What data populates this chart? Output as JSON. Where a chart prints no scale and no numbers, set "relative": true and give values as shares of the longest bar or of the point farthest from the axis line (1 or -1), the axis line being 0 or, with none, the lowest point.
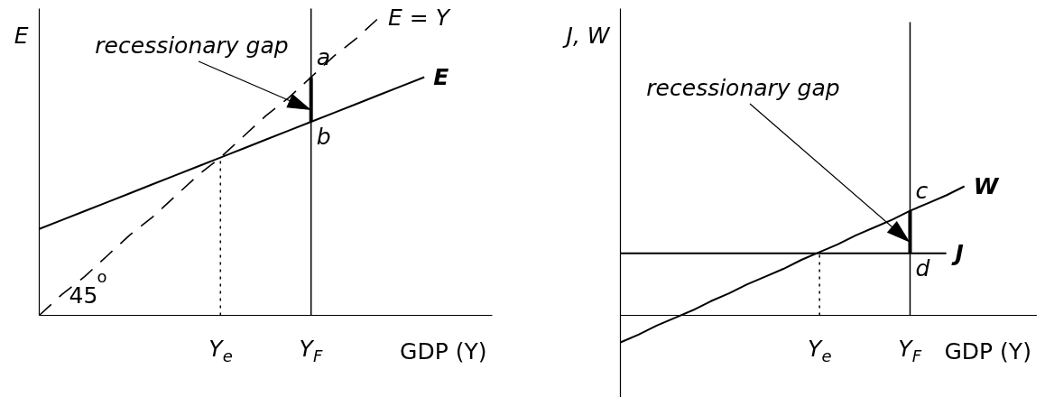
{
  "chart_data": [
    {
      "type": "line",
      "relative": true,
      "xlabel": "GDP (Y)",
      "ylabel": "E",
      "categories": [
        null,
        null,
        null,
        null,
        null,
        null,
        null,
        null,
        "Y$_{e}$",
        null,
        null,
        null,
        "Y$_{F}$",
        null,
        null,
        null,
        null,
        null,
        null,
        null,
        null
      ],
      "series": [
        {
          "name": "E = Y",
          "color": "#000000",
          "line_style": "dashed",
          "values": [
            0,
            0.07,
            0.13,
            0.2,
            0.27,
            0.33,
            0.4,
            0.47,
            0.53,
            0.6,
            0.67,
            0.73,
            0.8,
            0.87,
            0.93,
            1.0,
            null,
            null,
            null,
            null,
            null
          ]
        },
        {
          "name": "E",
          "color": "#000000",
          "line_style": "solid",
          "values": [
            0.29,
            0.32,
            0.35,
            0.38,
            0.41,
            0.44,
            0.47,
            0.5,
            0.53,
            0.56,
            0.59,
            0.62,
            0.65,
            0.68,
            0.71,
            0.74,
            0.77,
            0.8,
            null,
            null,
            null
          ]
        }
      ],
      "ref_lines": [
        {
          "axis": "x",
          "value": "Y$_{e}$",
          "line_style": "dotted",
          "color": "#000000"
        },
        {
          "axis": "x",
          "value": "Y$_{F}$",
          "line_style": "solid",
          "color": "#000000"
        }
      ],
      "annotations": [
        "45$^{o}$",
        {
          "text": "recessionary gap",
          "x": "Y$_{F}$",
          "y": 0.69
        },
        {
          "text": "a",
          "x": "Y$_{F}$",
          "y": 0.8
        },
        {
          "text": "b",
          "x": "Y$_{F}$",
          "y": 0.65
        }
      ]
    },
    {
      "type": "line",
      "relative": true,
      "xlabel": "GDP (Y)",
      "ylabel": "J, W",
      "categories": [
        null,
        null,
        null,
        null,
        null,
        null,
        null,
        null,
        null,
        null,
        null,
        "Y$_{e}$",
        null,
        null,
        null,
        null,
        "Y$_{F}$",
        null,
        null,
        null,
        null,
        null,
        null,
        null
      ],
      "series": [
        {
          "name": "W",
          "color": "#000000",
          "line_style": "solid",
          "values": [
            -0.21,
            -0.15,
            -0.08,
            -0.02,
            0.04,
            0.11,
            0.17,
            0.24,
            0.3,
            0.36,
            0.43,
            0.49,
            0.55,
            0.62,
            0.68,
            0.74,
            0.81,
            0.87,
            0.93,
            1.0,
            null,
            null,
            null,
            null
          ]
        },
        {
          "name": "J",
          "color": "#000000",
          "line_style": "solid",
          "values": [
            0.48,
            0.48,
            0.48,
            0.48,
            0.48,
            0.48,
            0.48,
            0.48,
            0.48,
            0.48,
            0.48,
            0.48,
            0.48,
            0.48,
            0.48,
            0.48,
            0.48,
            0.48,
            0.48,
            null,
            null,
            null,
            null,
            null
          ]
        }
      ],
      "ref_lines": [
        {
          "axis": "x",
          "value": "Y$_{e}$",
          "line_style": "dotted",
          "color": "#000000"
        },
        {
          "axis": "x",
          "value": "Y$_{F}$",
          "line_style": "solid",
          "color": "#000000"
        }
      ],
      "annotations": [
        {
          "text": "recessionary gap",
          "x": "Y$_{F}$",
          "y": 0.57
        },
        {
          "text": "c",
          "x": "Y$_{F}$",
          "y": 0.81
        },
        {
          "text": "d",
          "x": "Y$_{F}$",
          "y": 0.48
        }
      ]
    }
  ]
}
